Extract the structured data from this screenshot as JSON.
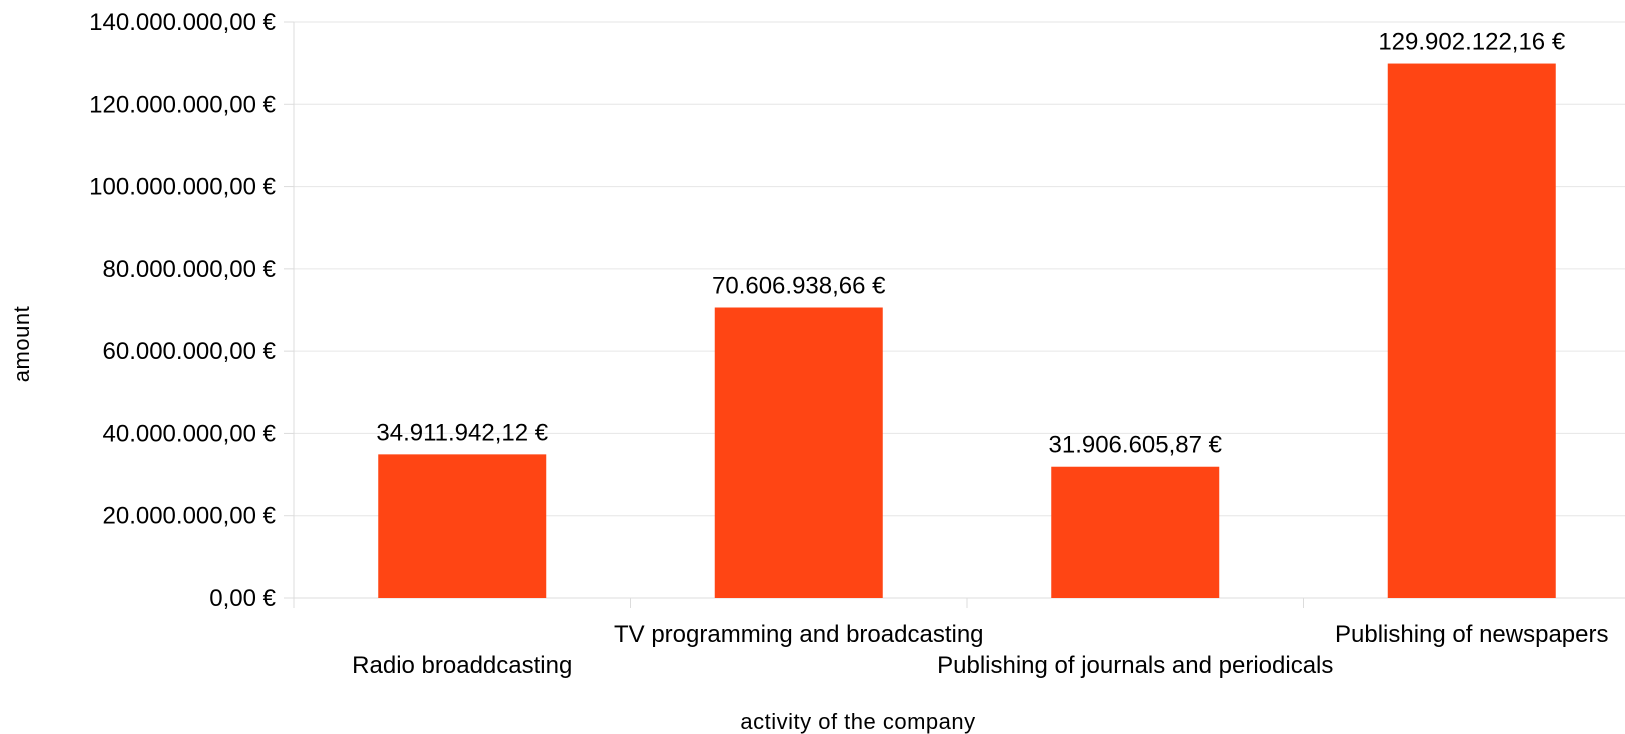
{
  "chart_data": {
    "type": "bar",
    "categories": [
      "Radio broaddcasting",
      "TV programming and broadcasting",
      "Publishing of journals and periodicals",
      "Publishing of newspapers"
    ],
    "values": [
      34911942.12,
      70606938.66,
      31906605.87,
      129902122.16
    ],
    "value_labels": [
      "34.911.942,12 €",
      "70.606.938,66 €",
      "31.906.605,87 €",
      "129.902.122,16 €"
    ],
    "ytick_values": [
      0,
      20000000,
      40000000,
      60000000,
      80000000,
      100000000,
      120000000,
      140000000
    ],
    "ytick_labels": [
      "0,00 €",
      "20.000.000,00 €",
      "40.000.000,00 €",
      "60.000.000,00 €",
      "80.000.000,00 €",
      "100.000.000,00 €",
      "120.000.000,00 €",
      "140.000.000,00 €"
    ],
    "xlabel": "activity of the company",
    "ylabel": "amount",
    "ylim": [
      0,
      140000000
    ],
    "grid": true,
    "bar_color": "#ff4514"
  }
}
